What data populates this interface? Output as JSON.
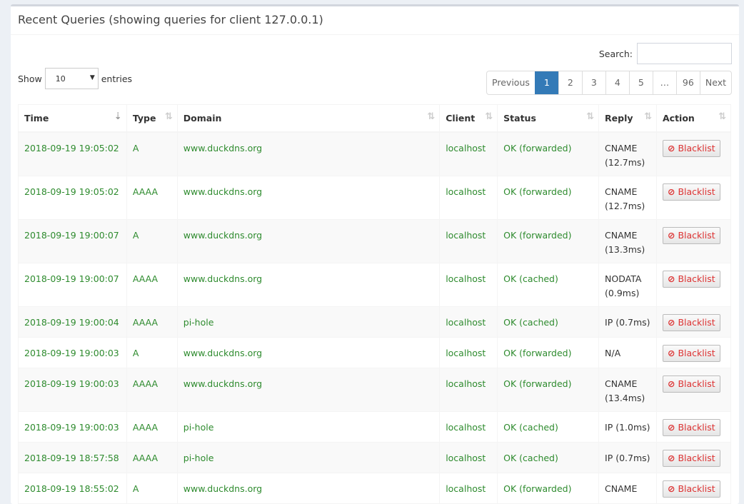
{
  "title": "Recent Queries (showing queries for client 127.0.0.1)",
  "search_label": "Search:",
  "search_value": "",
  "show_label": "Show",
  "entries_label": "entries",
  "page_length": "10",
  "pager": [
    "Previous",
    "1",
    "2",
    "3",
    "4",
    "5",
    "…",
    "96",
    "Next"
  ],
  "active_page": "1",
  "columns": [
    "Time",
    "Type",
    "Domain",
    "Client",
    "Status",
    "Reply",
    "Action"
  ],
  "sorted_column": "Time",
  "action_label": "Blacklist",
  "colors": {
    "text_green": "#2e8b2e",
    "active_page": "#337ab7",
    "blacklist_red": "#dd3333"
  },
  "rows": [
    {
      "time": "2018-09-19 19:05:02",
      "type": "A",
      "domain": "www.duckdns.org",
      "client": "localhost",
      "status": "OK (forwarded)",
      "reply": "CNAME (12.7ms)"
    },
    {
      "time": "2018-09-19 19:05:02",
      "type": "AAAA",
      "domain": "www.duckdns.org",
      "client": "localhost",
      "status": "OK (forwarded)",
      "reply": "CNAME (12.7ms)"
    },
    {
      "time": "2018-09-19 19:00:07",
      "type": "A",
      "domain": "www.duckdns.org",
      "client": "localhost",
      "status": "OK (forwarded)",
      "reply": "CNAME (13.3ms)"
    },
    {
      "time": "2018-09-19 19:00:07",
      "type": "AAAA",
      "domain": "www.duckdns.org",
      "client": "localhost",
      "status": "OK (cached)",
      "reply": "NODATA (0.9ms)"
    },
    {
      "time": "2018-09-19 19:00:04",
      "type": "AAAA",
      "domain": "pi-hole",
      "client": "localhost",
      "status": "OK (cached)",
      "reply": "IP (0.7ms)"
    },
    {
      "time": "2018-09-19 19:00:03",
      "type": "A",
      "domain": "www.duckdns.org",
      "client": "localhost",
      "status": "OK (forwarded)",
      "reply": "N/A"
    },
    {
      "time": "2018-09-19 19:00:03",
      "type": "AAAA",
      "domain": "www.duckdns.org",
      "client": "localhost",
      "status": "OK (forwarded)",
      "reply": "CNAME (13.4ms)"
    },
    {
      "time": "2018-09-19 19:00:03",
      "type": "AAAA",
      "domain": "pi-hole",
      "client": "localhost",
      "status": "OK (cached)",
      "reply": "IP (1.0ms)"
    },
    {
      "time": "2018-09-19 18:57:58",
      "type": "AAAA",
      "domain": "pi-hole",
      "client": "localhost",
      "status": "OK (cached)",
      "reply": "IP (0.7ms)"
    },
    {
      "time": "2018-09-19 18:55:02",
      "type": "A",
      "domain": "www.duckdns.org",
      "client": "localhost",
      "status": "OK (forwarded)",
      "reply": "CNAME"
    }
  ]
}
